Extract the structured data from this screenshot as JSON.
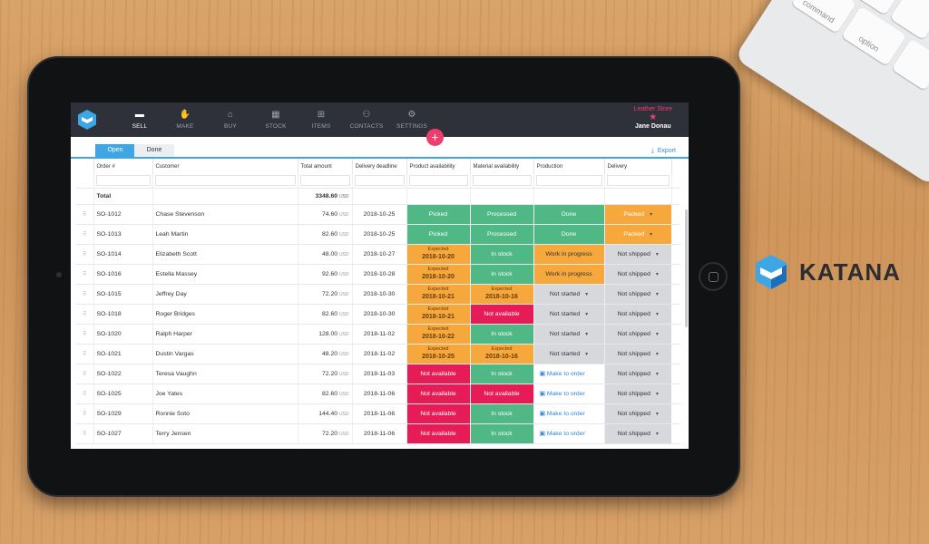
{
  "app": {
    "nav": [
      {
        "label": "SELL",
        "icon": "▬",
        "active": true
      },
      {
        "label": "MAKE",
        "icon": "✋"
      },
      {
        "label": "BUY",
        "icon": "⌂"
      },
      {
        "label": "STOCK",
        "icon": "▦"
      },
      {
        "label": "ITEMS",
        "icon": "⊞"
      },
      {
        "label": "CONTACTS",
        "icon": "⚇"
      },
      {
        "label": "SETTINGS",
        "icon": "⚙"
      }
    ],
    "store": "Leather Store",
    "user": "Jane Donau",
    "tabs": {
      "open": "Open",
      "done": "Done"
    },
    "export": "Export",
    "columns": [
      "Order #",
      "Customer",
      "Total amount",
      "Delivery deadline",
      "Product availability",
      "Material availability",
      "Production",
      "Delivery"
    ],
    "total_label": "Total",
    "total_amount": "3348.60",
    "currency": "USD",
    "rows": [
      {
        "order": "SO-1012",
        "customer": "Chase Stevenson",
        "amount": "74.60",
        "deadline": "2018-10-25",
        "product": {
          "text": "Picked",
          "color": "green"
        },
        "material": {
          "text": "Processed",
          "color": "green"
        },
        "production": {
          "text": "Done",
          "color": "prodgreen"
        },
        "delivery": {
          "text": "Packed",
          "color": "orange"
        }
      },
      {
        "order": "SO-1013",
        "customer": "Leah Martin",
        "amount": "82.60",
        "deadline": "2018-10-25",
        "product": {
          "text": "Picked",
          "color": "green"
        },
        "material": {
          "text": "Processed",
          "color": "green"
        },
        "production": {
          "text": "Done",
          "color": "prodgreen"
        },
        "delivery": {
          "text": "Packed",
          "color": "orange"
        }
      },
      {
        "order": "SO-1014",
        "customer": "Elizabeth Scott",
        "amount": "48.00",
        "deadline": "2018-10-27",
        "product": {
          "sub": "Expected",
          "date": "2018-10-20",
          "color": "orange"
        },
        "material": {
          "text": "In stock",
          "color": "green"
        },
        "production": {
          "text": "Work in progress",
          "color": "prodorange"
        },
        "delivery": {
          "text": "Not shipped",
          "color": "gray"
        }
      },
      {
        "order": "SO-1016",
        "customer": "Estella Massey",
        "amount": "92.60",
        "deadline": "2018-10-28",
        "product": {
          "sub": "Expected",
          "date": "2018-10-20",
          "color": "orange"
        },
        "material": {
          "text": "In stock",
          "color": "green"
        },
        "production": {
          "text": "Work in progress",
          "color": "prodorange"
        },
        "delivery": {
          "text": "Not shipped",
          "color": "gray"
        }
      },
      {
        "order": "SO-1015",
        "customer": "Jeffrey Day",
        "amount": "72.20",
        "deadline": "2018-10-30",
        "product": {
          "sub": "Expected",
          "date": "2018-10-21",
          "color": "orange"
        },
        "material": {
          "sub": "Expected",
          "date": "2018-10-16",
          "color": "orange"
        },
        "production": {
          "text": "Not started",
          "color": "gray"
        },
        "delivery": {
          "text": "Not shipped",
          "color": "gray"
        }
      },
      {
        "order": "SO-1018",
        "customer": "Roger Bridges",
        "amount": "82.60",
        "deadline": "2018-10-30",
        "product": {
          "sub": "Expected",
          "date": "2018-10-21",
          "color": "orange"
        },
        "material": {
          "text": "Not available",
          "color": "red"
        },
        "production": {
          "text": "Not started",
          "color": "gray"
        },
        "delivery": {
          "text": "Not shipped",
          "color": "gray"
        }
      },
      {
        "order": "SO-1020",
        "customer": "Ralph Harper",
        "amount": "128.00",
        "deadline": "2018-11-02",
        "product": {
          "sub": "Expected",
          "date": "2018-10-22",
          "color": "orange"
        },
        "material": {
          "text": "In stock",
          "color": "green"
        },
        "production": {
          "text": "Not started",
          "color": "gray"
        },
        "delivery": {
          "text": "Not shipped",
          "color": "gray"
        }
      },
      {
        "order": "SO-1021",
        "customer": "Dustin Vargas",
        "amount": "48.20",
        "deadline": "2018-11-02",
        "product": {
          "sub": "Expected",
          "date": "2018-10-25",
          "color": "orange"
        },
        "material": {
          "sub": "Expected",
          "date": "2018-10-16",
          "color": "orange"
        },
        "production": {
          "text": "Not started",
          "color": "gray"
        },
        "delivery": {
          "text": "Not shipped",
          "color": "gray"
        }
      },
      {
        "order": "SO-1022",
        "customer": "Teresa Vaughn",
        "amount": "72.20",
        "deadline": "2018-11-03",
        "product": {
          "text": "Not available",
          "color": "red"
        },
        "material": {
          "text": "In stock",
          "color": "green"
        },
        "production": {
          "text": "Make to order",
          "color": "make"
        },
        "delivery": {
          "text": "Not shipped",
          "color": "gray"
        }
      },
      {
        "order": "SO-1025",
        "customer": "Joe Yates",
        "amount": "82.60",
        "deadline": "2018-11-06",
        "product": {
          "text": "Not available",
          "color": "red"
        },
        "material": {
          "text": "Not available",
          "color": "red"
        },
        "production": {
          "text": "Make to order",
          "color": "make"
        },
        "delivery": {
          "text": "Not shipped",
          "color": "gray"
        }
      },
      {
        "order": "SO-1029",
        "customer": "Ronnie Soto",
        "amount": "144.40",
        "deadline": "2018-11-06",
        "product": {
          "text": "Not available",
          "color": "red"
        },
        "material": {
          "text": "In stock",
          "color": "green"
        },
        "production": {
          "text": "Make to order",
          "color": "make"
        },
        "delivery": {
          "text": "Not shipped",
          "color": "gray"
        }
      },
      {
        "order": "SO-1027",
        "customer": "Terry Jensen",
        "amount": "72.20",
        "deadline": "2018-11-06",
        "product": {
          "text": "Not available",
          "color": "red"
        },
        "material": {
          "text": "In stock",
          "color": "green"
        },
        "production": {
          "text": "Make to order",
          "color": "make"
        },
        "delivery": {
          "text": "Not shipped",
          "color": "gray"
        }
      }
    ]
  },
  "keyboard": {
    "keys": [
      "command",
      "option"
    ]
  },
  "brand": {
    "name": "KATANA"
  },
  "colors": {
    "accent": "#3fa6e6",
    "pink": "#ef3d6f",
    "green": "#4fb885",
    "orange": "#f6a83d",
    "red": "#e51c56",
    "gray": "#d6d8db"
  }
}
